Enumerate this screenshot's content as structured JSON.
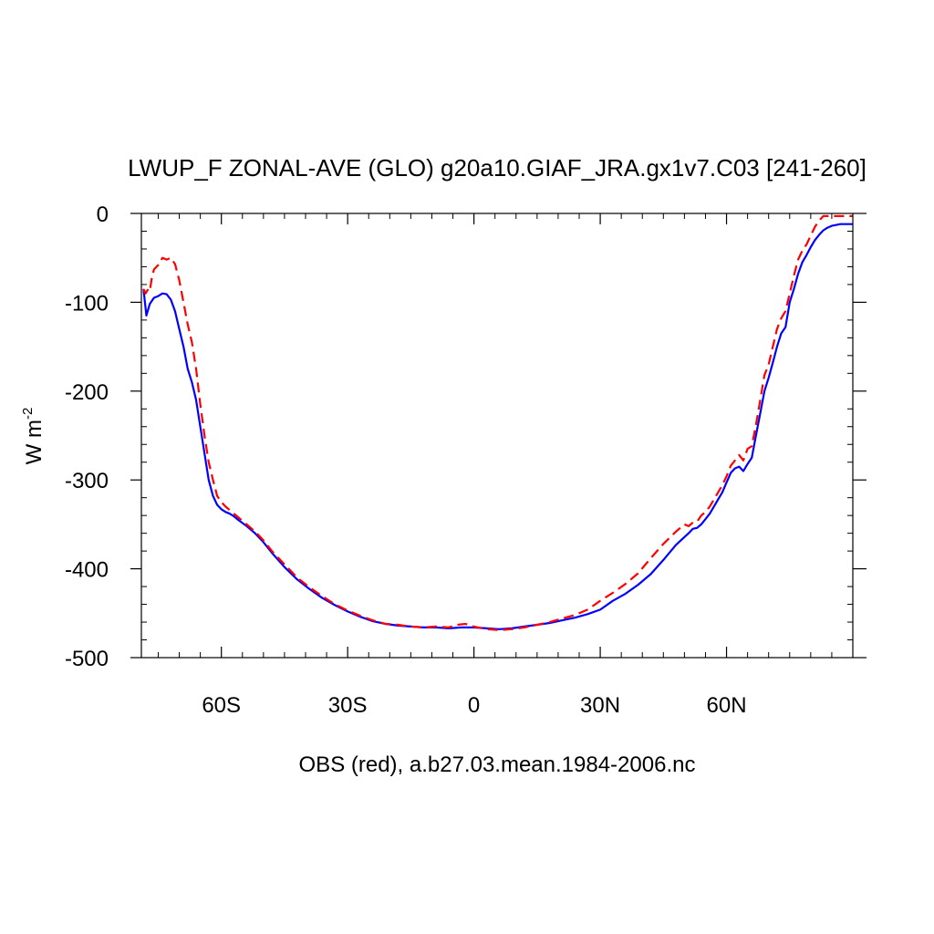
{
  "chart_data": {
    "type": "line",
    "title": "LWUP_F ZONAL-AVE (GLO) g20a10.GIAF_JRA.gx1v7.C03 [241-260]",
    "xlabel": "OBS (red), a.b27.03.mean.1984-2006.nc",
    "ylabel_main": "W m",
    "ylabel_sup": "-2",
    "xlim": [
      -79,
      90
    ],
    "ylim": [
      -500,
      0
    ],
    "x_ticks": [
      {
        "value": -60,
        "label": "60S"
      },
      {
        "value": -30,
        "label": "30S"
      },
      {
        "value": 0,
        "label": "0"
      },
      {
        "value": 30,
        "label": "30N"
      },
      {
        "value": 60,
        "label": "60N"
      }
    ],
    "y_ticks": [
      {
        "value": 0,
        "label": "0"
      },
      {
        "value": -100,
        "label": "-100"
      },
      {
        "value": -200,
        "label": "-200"
      },
      {
        "value": -300,
        "label": "-300"
      },
      {
        "value": -400,
        "label": "-400"
      },
      {
        "value": -500,
        "label": "-500"
      }
    ],
    "grid": false,
    "series": [
      {
        "color": "#0000ff",
        "style": "solid",
        "x": [
          -78.5,
          -77.8,
          -77,
          -76,
          -75,
          -74,
          -73,
          -72,
          -71,
          -70,
          -69,
          -68,
          -67,
          -66,
          -65,
          -64,
          -63,
          -62,
          -61,
          -60,
          -59,
          -58,
          -57,
          -56,
          -54,
          -52,
          -50,
          -48,
          -45,
          -42,
          -39,
          -36,
          -33,
          -30,
          -27,
          -24,
          -21,
          -18,
          -15,
          -12,
          -9,
          -6,
          -3,
          0,
          3,
          6,
          9,
          12,
          15,
          18,
          21,
          24,
          27,
          30,
          33,
          36,
          39,
          42,
          45,
          48,
          51,
          52,
          53,
          54,
          55,
          56,
          57,
          58,
          59,
          60,
          61,
          62,
          63,
          64,
          65,
          66,
          67,
          68,
          69,
          70,
          71,
          72,
          73,
          74,
          75,
          76,
          77,
          78,
          79,
          80,
          81,
          82,
          83,
          84,
          85,
          86,
          87,
          88,
          89,
          90
        ],
        "values": [
          -85,
          -115,
          -102,
          -95,
          -93,
          -90,
          -91,
          -97,
          -110,
          -130,
          -150,
          -175,
          -190,
          -210,
          -240,
          -270,
          -300,
          -318,
          -328,
          -333,
          -336,
          -338,
          -341,
          -345,
          -352,
          -360,
          -370,
          -382,
          -398,
          -412,
          -423,
          -433,
          -441,
          -448,
          -454,
          -459,
          -462,
          -464,
          -465,
          -466,
          -466,
          -467,
          -466,
          -466,
          -467,
          -468,
          -467,
          -465,
          -463,
          -461,
          -458,
          -455,
          -451,
          -446,
          -436,
          -428,
          -418,
          -406,
          -390,
          -373,
          -360,
          -355,
          -354,
          -350,
          -344,
          -338,
          -330,
          -322,
          -314,
          -303,
          -292,
          -287,
          -285,
          -290,
          -282,
          -275,
          -250,
          -225,
          -200,
          -185,
          -168,
          -150,
          -135,
          -128,
          -100,
          -85,
          -68,
          -55,
          -47,
          -38,
          -30,
          -24,
          -19,
          -16,
          -14,
          -13,
          -12,
          -12,
          -12,
          -12
        ],
        "label": ""
      },
      {
        "color": "#ff0000",
        "style": "dashed",
        "x": [
          -78.5,
          -78,
          -77.5,
          -77,
          -76.5,
          -76,
          -75,
          -74,
          -73,
          -72,
          -71,
          -70,
          -69,
          -68,
          -67,
          -66,
          -65,
          -64,
          -63,
          -62,
          -61,
          -60,
          -59,
          -58,
          -57,
          -56,
          -54,
          -52,
          -50,
          -48,
          -45,
          -42,
          -39,
          -36,
          -33,
          -30,
          -27,
          -24,
          -21,
          -18,
          -15,
          -12,
          -9,
          -6,
          -4,
          -2,
          0,
          3,
          6,
          9,
          12,
          15,
          18,
          21,
          24,
          27,
          30,
          33,
          36,
          39,
          42,
          45,
          48,
          50,
          51,
          52,
          53,
          54,
          55,
          56,
          57,
          58,
          59,
          60,
          61,
          62,
          63,
          64,
          65,
          66,
          67,
          68,
          69,
          70,
          71,
          72,
          73,
          74,
          75,
          76,
          77,
          78,
          79,
          80,
          81,
          82,
          83,
          84,
          85,
          86,
          87,
          88,
          89,
          90
        ],
        "values": [
          -85,
          -90,
          -86,
          -88,
          -72,
          -63,
          -58,
          -50,
          -52,
          -50,
          -57,
          -75,
          -100,
          -125,
          -145,
          -175,
          -215,
          -250,
          -280,
          -300,
          -318,
          -325,
          -330,
          -334,
          -338,
          -342,
          -350,
          -358,
          -368,
          -380,
          -395,
          -410,
          -421,
          -431,
          -440,
          -447,
          -453,
          -458,
          -462,
          -463,
          -465,
          -466,
          -465,
          -466,
          -463,
          -462,
          -465,
          -468,
          -469,
          -468,
          -466,
          -463,
          -460,
          -456,
          -452,
          -446,
          -436,
          -427,
          -417,
          -405,
          -388,
          -372,
          -358,
          -350,
          -352,
          -348,
          -347,
          -340,
          -336,
          -330,
          -322,
          -314,
          -306,
          -296,
          -284,
          -278,
          -272,
          -278,
          -265,
          -262,
          -238,
          -210,
          -182,
          -170,
          -150,
          -130,
          -118,
          -110,
          -90,
          -70,
          -52,
          -42,
          -35,
          -25,
          -15,
          -8,
          -3,
          -3,
          -3,
          -3,
          -3,
          -3,
          -3,
          -3
        ],
        "label": ""
      }
    ]
  }
}
